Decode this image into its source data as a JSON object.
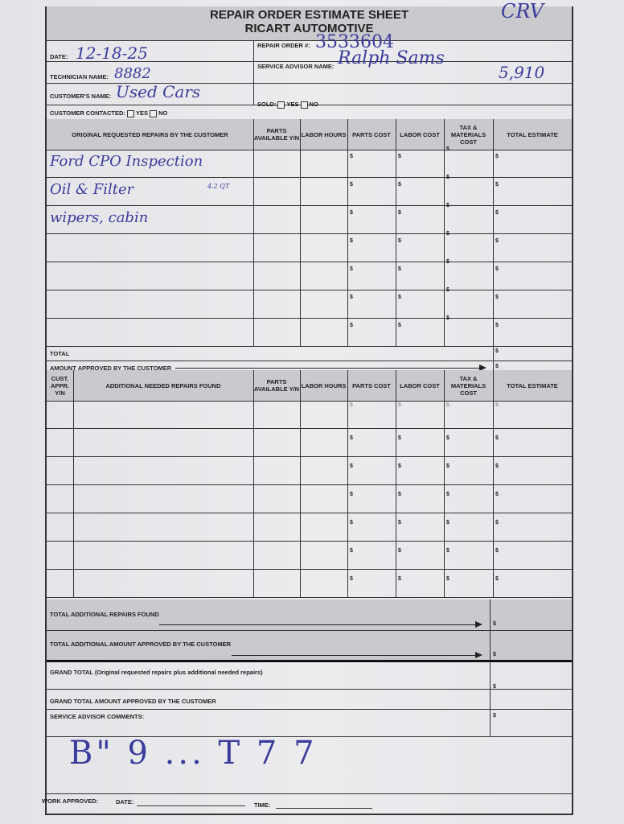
{
  "header": {
    "title": "REPAIR ORDER ESTIMATE SHEET",
    "company": "RICART AUTOMOTIVE",
    "vehicle": "CRV"
  },
  "info": {
    "date_label": "DATE:",
    "date": "12-18-25",
    "technician_label": "TECHNICIAN NAME:",
    "technician": "8882",
    "customer_label": "CUSTOMER'S NAME:",
    "customer": "Used Cars",
    "repair_order_label": "REPAIR ORDER #:",
    "repair_order": "3533604",
    "advisor_label": "SERVICE ADVISOR NAME:",
    "advisor": "Ralph Sams",
    "mileage": "5,910",
    "contacted_label": "CUSTOMER CONTACTED:",
    "sold_label": "SOLD:",
    "yes": "YES",
    "no": "NO"
  },
  "original": {
    "columns": [
      "ORIGINAL REQUESTED REPAIRS BY THE CUSTOMER",
      "PARTS AVAILABLE Y/N",
      "LABOR HOURS",
      "PARTS COST",
      "LABOR COST",
      "TAX & MATERIALS COST",
      "TOTAL ESTIMATE"
    ],
    "rows": [
      {
        "desc": "Ford CPO Inspection",
        "note": ""
      },
      {
        "desc": "Oil & Filter",
        "note": "4.2 QT"
      },
      {
        "desc": "wipers, cabin",
        "note": ""
      },
      {
        "desc": "",
        "note": ""
      },
      {
        "desc": "",
        "note": ""
      },
      {
        "desc": "",
        "note": ""
      },
      {
        "desc": "",
        "note": ""
      }
    ],
    "total_label": "TOTAL",
    "approved_label": "AMOUNT APPROVED BY THE CUSTOMER",
    "currency": "$"
  },
  "additional": {
    "columns": [
      "CUST. APPR. Y/N",
      "ADDITIONAL NEEDED REPAIRS FOUND",
      "PARTS AVAILABLE Y/N",
      "LABOR HOURS",
      "PARTS COST",
      "LABOR COST",
      "TAX & MATERIALS COST",
      "TOTAL ESTIMATE"
    ],
    "row_count": 7
  },
  "summary": {
    "total_additional": "TOTAL ADDITIONAL REPAIRS FOUND",
    "total_additional_approved": "TOTAL ADDITIONAL AMOUNT APPROVED BY THE CUSTOMER",
    "grand_total": "GRAND TOTAL (Original requested repairs plus additional needed repairs)",
    "grand_total_approved": "GRAND TOTAL AMOUNT APPROVED BY THE CUSTOMER",
    "comments_label": "SERVICE ADVISOR COMMENTS:",
    "comments": "B\" 9 ... T 7 7",
    "work_approved": "WORK APPROVED:",
    "date_label": "DATE:",
    "time_label": "TIME:"
  }
}
